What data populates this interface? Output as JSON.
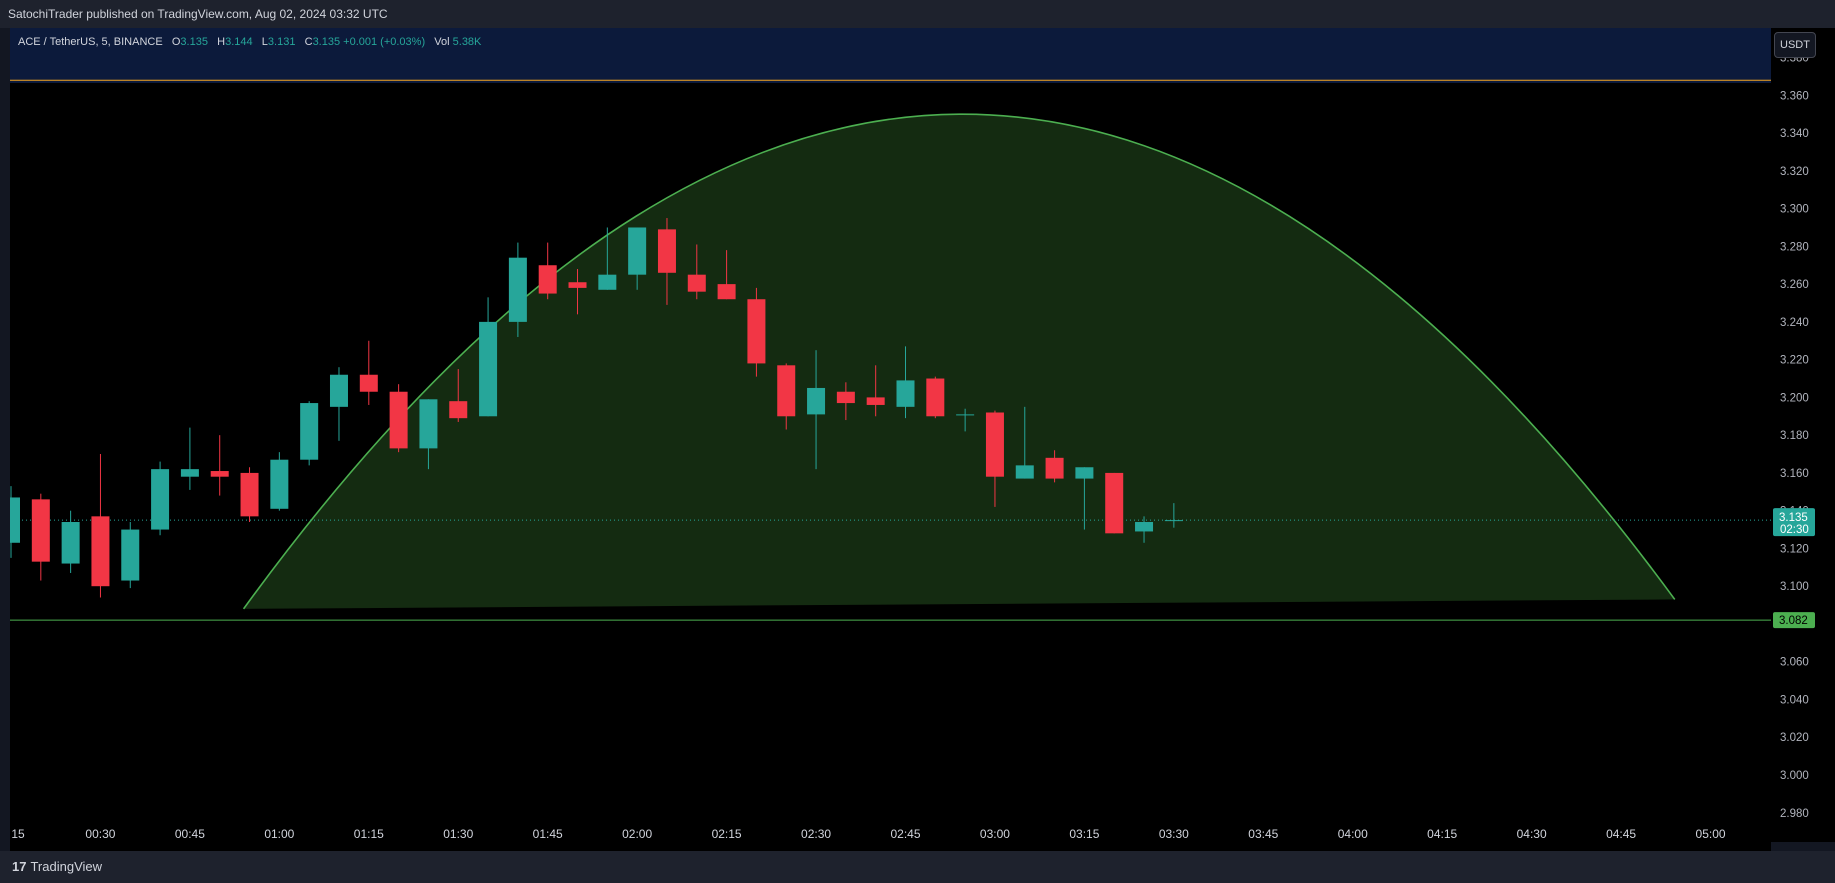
{
  "publisher": "SatochiTrader published on TradingView.com, Aug 02, 2024 03:32 UTC",
  "legend": {
    "symbol": "ACE / TetherUS, 5, BINANCE",
    "o_label": "O",
    "o_value": "3.135",
    "h_label": "H",
    "h_value": "3.144",
    "l_label": "L",
    "l_value": "3.131",
    "c_label": "C",
    "c_value": "3.135",
    "change": "+0.001 (+0.03%)",
    "vol_label": "Vol",
    "vol_value": "5.38K"
  },
  "currency_button": "USDT",
  "footer": {
    "logo_mark": "17",
    "logo_text": "TradingView"
  },
  "colors": {
    "up": "#26a69a",
    "down": "#f23645",
    "arc": "#4caf50",
    "arc_fill": "#1b3a17",
    "support": "#4caf50",
    "resistance": "#f5a623",
    "price_tag": "#26a69a",
    "support_tag": "#4caf50"
  },
  "chart_data": {
    "type": "candlestick",
    "timeframe": "5",
    "y_ticks": [
      "2.980",
      "3.000",
      "3.020",
      "3.040",
      "3.060",
      "3.080",
      "3.100",
      "3.120",
      "3.140",
      "3.160",
      "3.180",
      "3.200",
      "3.220",
      "3.240",
      "3.260",
      "3.280",
      "3.300",
      "3.320",
      "3.340",
      "3.360",
      "3.380"
    ],
    "x_ticks": [
      "15",
      "00:30",
      "00:45",
      "01:00",
      "01:15",
      "01:30",
      "01:45",
      "02:00",
      "02:15",
      "02:30",
      "02:45",
      "03:00",
      "03:15",
      "03:30",
      "03:45",
      "04:00",
      "04:15",
      "04:30",
      "04:45",
      "05:00"
    ],
    "ylim": [
      2.968,
      3.382
    ],
    "xlim_minutes": [
      15,
      318
    ],
    "candles": [
      {
        "t": 15,
        "o": 3.123,
        "h": 3.153,
        "l": 3.115,
        "c": 3.147
      },
      {
        "t": 20,
        "o": 3.146,
        "h": 3.149,
        "l": 3.103,
        "c": 3.113
      },
      {
        "t": 25,
        "o": 3.112,
        "h": 3.14,
        "l": 3.107,
        "c": 3.134
      },
      {
        "t": 30,
        "o": 3.137,
        "h": 3.17,
        "l": 3.094,
        "c": 3.1
      },
      {
        "t": 35,
        "o": 3.103,
        "h": 3.134,
        "l": 3.099,
        "c": 3.13
      },
      {
        "t": 40,
        "o": 3.13,
        "h": 3.166,
        "l": 3.127,
        "c": 3.162
      },
      {
        "t": 45,
        "o": 3.158,
        "h": 3.184,
        "l": 3.151,
        "c": 3.162
      },
      {
        "t": 50,
        "o": 3.161,
        "h": 3.18,
        "l": 3.148,
        "c": 3.158
      },
      {
        "t": 55,
        "o": 3.16,
        "h": 3.163,
        "l": 3.134,
        "c": 3.137
      },
      {
        "t": 60,
        "o": 3.141,
        "h": 3.171,
        "l": 3.14,
        "c": 3.167
      },
      {
        "t": 65,
        "o": 3.167,
        "h": 3.198,
        "l": 3.164,
        "c": 3.197
      },
      {
        "t": 70,
        "o": 3.195,
        "h": 3.216,
        "l": 3.177,
        "c": 3.212
      },
      {
        "t": 75,
        "o": 3.212,
        "h": 3.23,
        "l": 3.196,
        "c": 3.203
      },
      {
        "t": 80,
        "o": 3.203,
        "h": 3.207,
        "l": 3.171,
        "c": 3.173
      },
      {
        "t": 85,
        "o": 3.173,
        "h": 3.199,
        "l": 3.162,
        "c": 3.199
      },
      {
        "t": 90,
        "o": 3.198,
        "h": 3.215,
        "l": 3.187,
        "c": 3.189
      },
      {
        "t": 95,
        "o": 3.19,
        "h": 3.253,
        "l": 3.19,
        "c": 3.24
      },
      {
        "t": 100,
        "o": 3.24,
        "h": 3.282,
        "l": 3.232,
        "c": 3.274
      },
      {
        "t": 105,
        "o": 3.27,
        "h": 3.282,
        "l": 3.252,
        "c": 3.255
      },
      {
        "t": 110,
        "o": 3.261,
        "h": 3.268,
        "l": 3.244,
        "c": 3.258
      },
      {
        "t": 115,
        "o": 3.257,
        "h": 3.29,
        "l": 3.257,
        "c": 3.265
      },
      {
        "t": 120,
        "o": 3.265,
        "h": 3.29,
        "l": 3.257,
        "c": 3.29
      },
      {
        "t": 125,
        "o": 3.289,
        "h": 3.295,
        "l": 3.249,
        "c": 3.266
      },
      {
        "t": 130,
        "o": 3.265,
        "h": 3.281,
        "l": 3.252,
        "c": 3.256
      },
      {
        "t": 135,
        "o": 3.26,
        "h": 3.278,
        "l": 3.252,
        "c": 3.252
      },
      {
        "t": 140,
        "o": 3.252,
        "h": 3.258,
        "l": 3.211,
        "c": 3.218
      },
      {
        "t": 145,
        "o": 3.217,
        "h": 3.218,
        "l": 3.183,
        "c": 3.19
      },
      {
        "t": 150,
        "o": 3.191,
        "h": 3.225,
        "l": 3.162,
        "c": 3.205
      },
      {
        "t": 155,
        "o": 3.203,
        "h": 3.208,
        "l": 3.188,
        "c": 3.197
      },
      {
        "t": 160,
        "o": 3.2,
        "h": 3.217,
        "l": 3.19,
        "c": 3.196
      },
      {
        "t": 165,
        "o": 3.195,
        "h": 3.227,
        "l": 3.189,
        "c": 3.209
      },
      {
        "t": 170,
        "o": 3.21,
        "h": 3.211,
        "l": 3.189,
        "c": 3.19
      },
      {
        "t": 175,
        "o": 3.191,
        "h": 3.194,
        "l": 3.182,
        "c": 3.191
      },
      {
        "t": 180,
        "o": 3.192,
        "h": 3.193,
        "l": 3.142,
        "c": 3.158
      },
      {
        "t": 185,
        "o": 3.157,
        "h": 3.195,
        "l": 3.157,
        "c": 3.164
      },
      {
        "t": 190,
        "o": 3.168,
        "h": 3.172,
        "l": 3.155,
        "c": 3.157
      },
      {
        "t": 195,
        "o": 3.157,
        "h": 3.163,
        "l": 3.13,
        "c": 3.163
      },
      {
        "t": 200,
        "o": 3.16,
        "h": 3.16,
        "l": 3.128,
        "c": 3.128
      },
      {
        "t": 205,
        "o": 3.129,
        "h": 3.137,
        "l": 3.123,
        "c": 3.134
      },
      {
        "t": 210,
        "o": 3.135,
        "h": 3.144,
        "l": 3.131,
        "c": 3.135
      }
    ],
    "current_price": "3.135",
    "countdown": "02:30",
    "support_level": "3.082",
    "resistance_level": 3.368,
    "arc": {
      "start_t": 54,
      "start_price": 3.088,
      "peak_t": 174,
      "peak_price": 3.35,
      "end_t": 294,
      "end_price": 3.093
    }
  }
}
